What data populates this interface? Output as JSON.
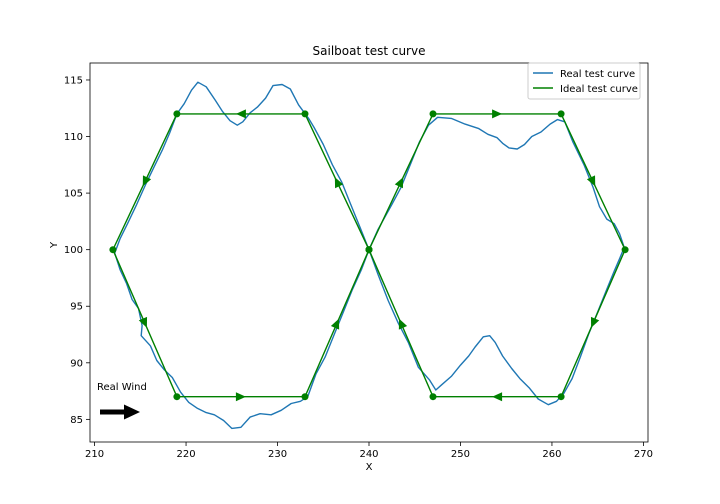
{
  "chart_data": {
    "type": "line",
    "title": "Sailboat test curve",
    "xlabel": "X",
    "ylabel": "Y",
    "xlim": [
      209.5,
      270.5
    ],
    "ylim": [
      83,
      116.5
    ],
    "xticks": [
      210,
      220,
      230,
      240,
      250,
      260,
      270
    ],
    "yticks": [
      85,
      90,
      95,
      100,
      105,
      110,
      115
    ],
    "grid": false,
    "legend": "top-right",
    "series": [
      {
        "name": "Real test curve",
        "color": "#1f77b4",
        "points": [
          [
            240,
            100
          ],
          [
            241,
            101.8
          ],
          [
            242.5,
            104
          ],
          [
            243.5,
            105.5
          ],
          [
            244.5,
            107.5
          ],
          [
            245.5,
            109.5
          ],
          [
            246.5,
            111
          ],
          [
            247.5,
            111.7
          ],
          [
            249,
            111.6
          ],
          [
            250.5,
            111.1
          ],
          [
            252,
            110.7
          ],
          [
            253,
            110.2
          ],
          [
            254,
            109.9
          ],
          [
            254.6,
            109.4
          ],
          [
            255.3,
            109.0
          ],
          [
            256.2,
            108.9
          ],
          [
            257,
            109.3
          ],
          [
            257.8,
            110.0
          ],
          [
            258.8,
            110.4
          ],
          [
            259.8,
            111.1
          ],
          [
            260.6,
            111.5
          ],
          [
            261.4,
            111.3
          ],
          [
            262.3,
            109.5
          ],
          [
            263.5,
            107.5
          ],
          [
            264.5,
            105.5
          ],
          [
            265.2,
            103.8
          ],
          [
            266,
            102.7
          ],
          [
            266.8,
            102.3
          ],
          [
            267.4,
            101.4
          ],
          [
            267.9,
            100.2
          ],
          [
            267.4,
            99.2
          ],
          [
            266.8,
            98.1
          ],
          [
            266,
            96.5
          ],
          [
            265,
            94.5
          ],
          [
            264,
            92.5
          ],
          [
            263.1,
            90.5
          ],
          [
            262.2,
            88.6
          ],
          [
            261.3,
            87.3
          ],
          [
            260.5,
            86.6
          ],
          [
            259.6,
            86.3
          ],
          [
            258.5,
            86.8
          ],
          [
            257.5,
            87.8
          ],
          [
            256.5,
            88.6
          ],
          [
            255.6,
            89.5
          ],
          [
            254.6,
            90.6
          ],
          [
            253.8,
            91.8
          ],
          [
            253.2,
            92.4
          ],
          [
            252.5,
            92.3
          ],
          [
            251.6,
            91.4
          ],
          [
            250.9,
            90.6
          ],
          [
            250,
            89.8
          ],
          [
            249,
            88.8
          ],
          [
            248,
            88.1
          ],
          [
            247.3,
            87.6
          ],
          [
            246.6,
            88.5
          ],
          [
            245.4,
            89.6
          ],
          [
            244.3,
            91.8
          ],
          [
            243.2,
            93.5
          ],
          [
            242.1,
            95.5
          ],
          [
            241,
            97.8
          ],
          [
            240,
            100
          ],
          [
            239,
            102
          ],
          [
            238,
            104
          ],
          [
            237,
            106
          ],
          [
            236,
            107.5
          ],
          [
            235,
            109.3
          ],
          [
            234,
            110.8
          ],
          [
            233.4,
            111.6
          ],
          [
            232.3,
            112.8
          ],
          [
            231.4,
            114.2
          ],
          [
            230.5,
            114.6
          ],
          [
            229.5,
            114.5
          ],
          [
            228.7,
            113.4
          ],
          [
            227.8,
            112.6
          ],
          [
            227,
            112.1
          ],
          [
            226.2,
            111.3
          ],
          [
            225.6,
            111.0
          ],
          [
            224.8,
            111.4
          ],
          [
            224,
            112.2
          ],
          [
            223.2,
            113.2
          ],
          [
            222.2,
            114.4
          ],
          [
            221.3,
            114.8
          ],
          [
            220.6,
            114.1
          ],
          [
            219.8,
            112.9
          ],
          [
            219,
            112.0
          ],
          [
            218.2,
            110.3
          ],
          [
            217.4,
            108.8
          ],
          [
            216.5,
            107.3
          ],
          [
            215.6,
            105.8
          ],
          [
            214.6,
            104.0
          ],
          [
            213.6,
            102.3
          ],
          [
            212.8,
            101.0
          ],
          [
            212.2,
            99.7
          ],
          [
            212.8,
            98.2
          ],
          [
            213.5,
            97.0
          ],
          [
            214.1,
            95.6
          ],
          [
            214.8,
            94.8
          ],
          [
            215.2,
            93.3
          ],
          [
            215.1,
            92.4
          ],
          [
            216.1,
            91.5
          ],
          [
            216.8,
            90.2
          ],
          [
            217.6,
            89.4
          ],
          [
            218.5,
            88.7
          ],
          [
            219.4,
            87.4
          ],
          [
            220.3,
            86.5
          ],
          [
            221.2,
            86.0
          ],
          [
            222.2,
            85.6
          ],
          [
            223.1,
            85.4
          ],
          [
            224.1,
            84.9
          ],
          [
            225,
            84.2
          ],
          [
            226,
            84.3
          ],
          [
            227,
            85.2
          ],
          [
            228.1,
            85.5
          ],
          [
            229.3,
            85.4
          ],
          [
            230.4,
            85.8
          ],
          [
            231.5,
            86.4
          ],
          [
            232.5,
            86.6
          ],
          [
            233.3,
            87.0
          ],
          [
            234.2,
            89.0
          ],
          [
            235.2,
            90.5
          ],
          [
            236.2,
            92.5
          ],
          [
            237.2,
            94.5
          ],
          [
            238.2,
            96.5
          ],
          [
            239.2,
            98.3
          ],
          [
            240,
            100
          ]
        ]
      },
      {
        "name": "Ideal test curve",
        "color": "#008000",
        "points": [
          [
            240,
            100
          ],
          [
            247,
            112
          ],
          [
            261,
            112
          ],
          [
            268,
            100
          ],
          [
            261,
            87
          ],
          [
            247,
            87
          ],
          [
            240,
            100
          ],
          [
            233,
            112
          ],
          [
            219,
            112
          ],
          [
            212,
            100
          ],
          [
            219,
            87
          ],
          [
            233,
            87
          ],
          [
            240,
            100
          ]
        ]
      }
    ],
    "annotation": "Real Wind"
  }
}
